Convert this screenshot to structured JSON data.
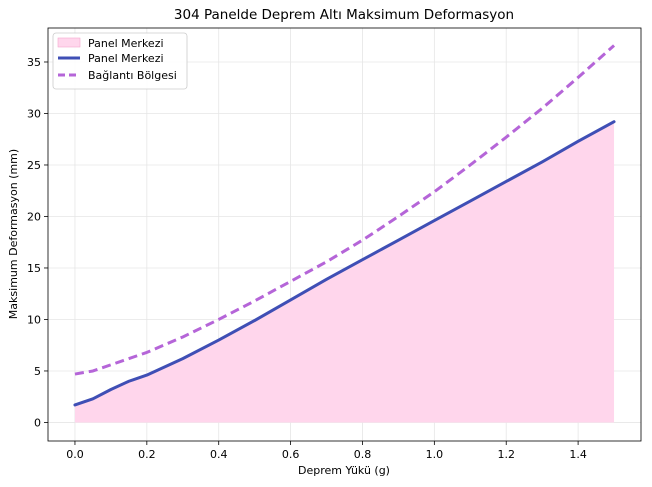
{
  "chart_data": {
    "type": "line",
    "title": "304 Panelde Deprem Altı Maksimum Deformasyon",
    "xlabel": "Deprem Yükü (g)",
    "ylabel": "Maksimum Deformasyon (mm)",
    "xlim": [
      -0.075,
      1.575
    ],
    "ylim": [
      -1.8,
      38.3
    ],
    "xticks": [
      0.0,
      0.2,
      0.4,
      0.6,
      0.8,
      1.0,
      1.2,
      1.4
    ],
    "xtick_labels": [
      "0.0",
      "0.2",
      "0.4",
      "0.6",
      "0.8",
      "1.0",
      "1.2",
      "1.4"
    ],
    "yticks": [
      0,
      5,
      10,
      15,
      20,
      25,
      30,
      35
    ],
    "ytick_labels": [
      "0",
      "5",
      "10",
      "15",
      "20",
      "25",
      "30",
      "35"
    ],
    "grid": true,
    "legend_position": "top-left",
    "series": [
      {
        "name": "Panel Merkezi",
        "kind": "area",
        "color": "#ffd6ec",
        "x": [
          0.0,
          0.05,
          0.1,
          0.15,
          0.2,
          0.3,
          0.4,
          0.5,
          0.6,
          0.7,
          0.8,
          0.9,
          1.0,
          1.1,
          1.2,
          1.3,
          1.4,
          1.5
        ],
        "y": [
          1.7,
          2.3,
          3.2,
          4.0,
          4.6,
          6.2,
          8.0,
          9.9,
          11.9,
          13.9,
          15.8,
          17.7,
          19.6,
          21.5,
          23.4,
          25.3,
          27.3,
          29.2
        ]
      },
      {
        "name": "Panel Merkezi",
        "kind": "line",
        "color": "#3f4fb5",
        "x": [
          0.0,
          0.05,
          0.1,
          0.15,
          0.2,
          0.3,
          0.4,
          0.5,
          0.6,
          0.7,
          0.8,
          0.9,
          1.0,
          1.1,
          1.2,
          1.3,
          1.4,
          1.5
        ],
        "y": [
          1.7,
          2.3,
          3.2,
          4.0,
          4.6,
          6.2,
          8.0,
          9.9,
          11.9,
          13.9,
          15.8,
          17.7,
          19.6,
          21.5,
          23.4,
          25.3,
          27.3,
          29.2
        ]
      },
      {
        "name": "Bağlantı Bölgesi",
        "kind": "dashed-line",
        "color": "#b565d8",
        "x": [
          0.0,
          0.05,
          0.1,
          0.2,
          0.3,
          0.4,
          0.5,
          0.6,
          0.7,
          0.8,
          0.9,
          1.0,
          1.1,
          1.2,
          1.3,
          1.4,
          1.5
        ],
        "y": [
          4.7,
          5.0,
          5.6,
          6.8,
          8.3,
          10.0,
          11.8,
          13.7,
          15.6,
          17.7,
          20.0,
          22.4,
          25.0,
          27.7,
          30.5,
          33.5,
          36.6
        ]
      }
    ]
  }
}
